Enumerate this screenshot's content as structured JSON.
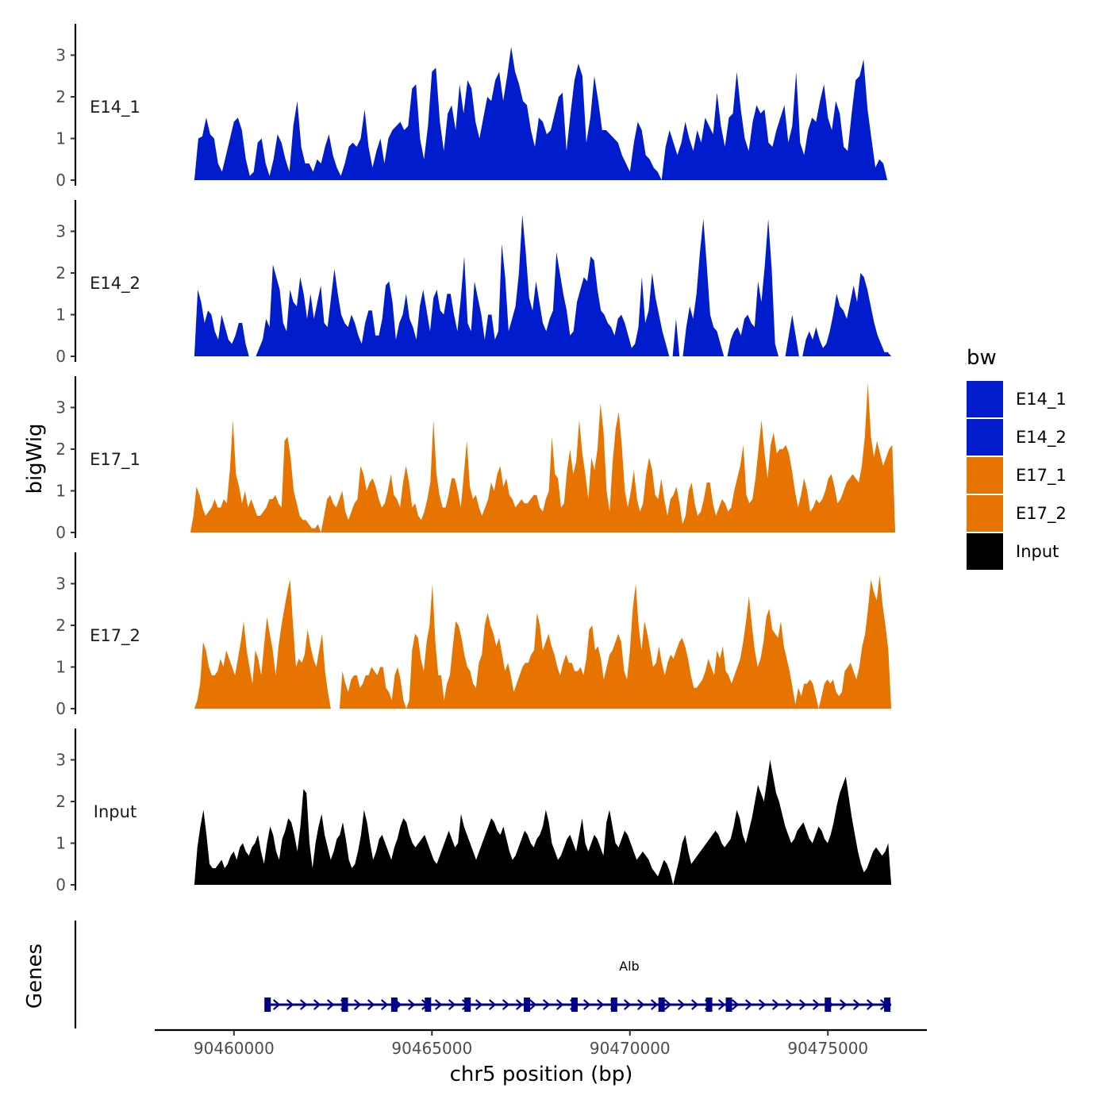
{
  "chart_data": {
    "type": "area",
    "title": "",
    "ylabel": "bigWig",
    "xlabel": "chr5 position (bp)",
    "xlim": [
      90458000,
      90477500
    ],
    "ylim": [
      0,
      3.6
    ],
    "x_ticks": [
      90460000,
      90465000,
      90470000,
      90475000
    ],
    "x_tick_labels": [
      "90460000",
      "90465000",
      "90470000",
      "90475000"
    ],
    "y_ticks": [
      0,
      1,
      2,
      3
    ],
    "y_tick_labels": [
      "0",
      "1",
      "2",
      "3"
    ],
    "colors": {
      "blue": "#001ccc",
      "orange": "#e87400",
      "black": "#000000",
      "gene": "#00008b"
    },
    "legend": {
      "title": "bw",
      "entries": [
        {
          "label": "E14_1",
          "color": "#001ccc"
        },
        {
          "label": "E14_2",
          "color": "#001ccc"
        },
        {
          "label": "E17_1",
          "color": "#e87400"
        },
        {
          "label": "E17_2",
          "color": "#e87400"
        },
        {
          "label": "Input",
          "color": "#000000"
        }
      ]
    },
    "series": [
      {
        "name": "E14_1",
        "color": "#001ccc",
        "x_start": 90459000,
        "x_end": 90476500,
        "values": [
          0,
          1.0,
          1.05,
          1.5,
          1.1,
          1.0,
          0.4,
          0.2,
          0.6,
          1.0,
          1.4,
          1.5,
          1.2,
          0.5,
          0.1,
          0.2,
          0.9,
          1.0,
          0.4,
          0.1,
          0.5,
          1.1,
          0.9,
          0.5,
          0.2,
          1.3,
          1.9,
          0.8,
          0.4,
          0.4,
          0.2,
          0.5,
          0.4,
          0.8,
          1.1,
          0.6,
          0.3,
          0.1,
          0.4,
          0.8,
          0.9,
          0.8,
          1.0,
          1.7,
          0.8,
          0.3,
          0.7,
          1.0,
          0.4,
          1.0,
          1.2,
          1.3,
          1.4,
          1.2,
          1.3,
          2.2,
          2.3,
          1.0,
          0.5,
          1.3,
          2.6,
          2.7,
          1.4,
          0.7,
          1.6,
          1.8,
          1.2,
          2.3,
          1.6,
          2.4,
          2.2,
          1.4,
          1.0,
          1.5,
          2.0,
          1.9,
          2.4,
          2.6,
          1.9,
          2.5,
          3.2,
          2.6,
          2.3,
          1.9,
          1.8,
          1.2,
          0.8,
          1.5,
          1.4,
          1.1,
          1.2,
          1.6,
          2.0,
          2.1,
          0.7,
          1.6,
          2.4,
          2.8,
          2.5,
          0.9,
          1.5,
          2.5,
          1.9,
          1.2,
          1.2,
          1.1,
          1.0,
          0.9,
          0.6,
          0.4,
          0.2,
          0.9,
          1.4,
          1.2,
          0.6,
          0.5,
          0.3,
          0.2,
          0.0,
          0.8,
          1.2,
          0.9,
          0.6,
          0.9,
          1.4,
          1.0,
          0.7,
          1.2,
          0.9,
          1.5,
          1.3,
          1.1,
          2.1,
          1.3,
          0.8,
          1.5,
          1.6,
          2.6,
          1.7,
          1.0,
          0.7,
          1.4,
          1.8,
          1.6,
          1.7,
          0.9,
          0.8,
          1.2,
          1.5,
          1.8,
          0.9,
          1.3,
          2.6,
          0.9,
          0.6,
          1.2,
          1.5,
          1.4,
          1.9,
          2.3,
          1.5,
          1.2,
          1.9,
          1.6,
          0.8,
          0.7,
          1.6,
          2.4,
          2.5,
          2.9,
          1.7,
          1.0,
          0.3,
          0.5,
          0.4,
          0
        ]
      },
      {
        "name": "E14_2",
        "color": "#001ccc",
        "x_start": 90459000,
        "x_end": 90476600,
        "values": [
          0,
          1.6,
          1.3,
          0.8,
          1.1,
          1.0,
          0.6,
          0.4,
          1.0,
          0.7,
          0.4,
          0.3,
          0.5,
          0.8,
          0.8,
          0.3,
          0.0,
          0.0,
          0.0,
          0.2,
          0.4,
          0.9,
          0.7,
          2.2,
          1.9,
          1.6,
          0.8,
          0.6,
          1.6,
          1.3,
          1.2,
          1.9,
          1.5,
          0.9,
          1.5,
          0.9,
          1.3,
          1.7,
          0.8,
          0.7,
          1.4,
          2.1,
          1.5,
          1.0,
          0.8,
          0.7,
          1.0,
          0.8,
          0.5,
          0.3,
          0.8,
          1.1,
          1.1,
          0.5,
          0.5,
          0.9,
          1.7,
          1.8,
          1.3,
          0.4,
          0.8,
          1.0,
          1.5,
          0.9,
          0.7,
          0.4,
          1.2,
          1.6,
          1.1,
          0.6,
          1.4,
          1.6,
          1.1,
          1.0,
          1.5,
          1.5,
          1.0,
          0.6,
          1.4,
          2.4,
          0.8,
          0.6,
          1.8,
          1.4,
          1.0,
          0.4,
          1.0,
          1.0,
          0.4,
          0.6,
          2.7,
          1.9,
          0.6,
          0.9,
          1.2,
          2.0,
          3.4,
          2.5,
          1.4,
          1.1,
          1.8,
          1.3,
          0.8,
          0.6,
          0.9,
          1.1,
          2.5,
          2.0,
          1.5,
          1.1,
          0.5,
          0.6,
          1.3,
          1.6,
          1.9,
          1.8,
          2.4,
          2.3,
          1.6,
          1.1,
          1.0,
          0.8,
          0.7,
          0.5,
          0.9,
          1.0,
          0.8,
          0.5,
          0.2,
          0.3,
          0.7,
          1.9,
          0.8,
          1.1,
          2.0,
          1.4,
          1.0,
          0.6,
          0.3,
          0.0,
          0.0,
          0.9,
          0.0,
          0.0,
          0.7,
          1.2,
          0.9,
          1.5,
          2.5,
          3.3,
          2.2,
          1.0,
          0.7,
          0.6,
          0.3,
          0.0,
          0.0,
          0.4,
          0.6,
          0.7,
          0.5,
          0.9,
          1.0,
          0.8,
          0.7,
          1.8,
          1.3,
          2.2,
          3.3,
          2.1,
          0.3,
          0.0,
          0.0,
          0.0,
          0.5,
          1.0,
          0.5,
          0.0,
          0.0,
          0.4,
          0.6,
          0.4,
          0.7,
          0.4,
          0.2,
          0.3,
          0.6,
          1.0,
          1.5,
          1.2,
          1.1,
          0.9,
          1.3,
          1.7,
          1.3,
          2.0,
          1.9,
          1.6,
          1.2,
          0.8,
          0.5,
          0.3,
          0.1,
          0.1,
          0
        ]
      },
      {
        "name": "E17_1",
        "color": "#e87400",
        "x_start": 90458900,
        "x_end": 90476700,
        "values": [
          0,
          0.4,
          1.1,
          0.9,
          0.6,
          0.4,
          0.5,
          0.6,
          0.8,
          0.6,
          0.6,
          0.8,
          0.7,
          1.5,
          2.7,
          1.4,
          1.1,
          0.7,
          1.0,
          0.6,
          0.8,
          0.6,
          0.4,
          0.4,
          0.5,
          0.6,
          0.8,
          0.8,
          0.9,
          0.7,
          0.6,
          2.2,
          2.3,
          1.8,
          1.0,
          0.7,
          0.4,
          0.3,
          0.3,
          0.2,
          0.1,
          0.1,
          0.2,
          0.0,
          0.4,
          0.8,
          0.9,
          0.7,
          0.6,
          0.8,
          1.0,
          0.5,
          0.3,
          0.5,
          0.7,
          0.8,
          1.6,
          1.4,
          1.0,
          1.2,
          1.3,
          1.1,
          0.8,
          0.6,
          0.7,
          1.0,
          1.4,
          0.9,
          0.8,
          0.6,
          1.2,
          1.6,
          1.2,
          0.6,
          0.7,
          0.4,
          0.3,
          0.5,
          0.8,
          1.2,
          2.7,
          1.4,
          0.9,
          0.6,
          0.6,
          0.9,
          1.3,
          1.3,
          1.0,
          0.6,
          1.4,
          2.2,
          1.1,
          0.8,
          0.9,
          0.6,
          0.4,
          0.6,
          0.8,
          1.2,
          1.0,
          1.4,
          1.6,
          1.1,
          1.3,
          0.9,
          0.8,
          0.6,
          0.7,
          0.8,
          0.7,
          0.7,
          0.8,
          0.9,
          0.9,
          0.6,
          0.5,
          0.8,
          1.0,
          2.3,
          1.4,
          1.3,
          0.6,
          0.7,
          1.5,
          2.0,
          1.4,
          1.7,
          2.7,
          1.9,
          1.4,
          0.8,
          1.8,
          1.5,
          2.0,
          3.1,
          2.4,
          1.0,
          0.5,
          1.7,
          2.5,
          2.9,
          2.1,
          1.0,
          0.6,
          1.0,
          1.5,
          0.8,
          0.5,
          0.7,
          1.4,
          1.8,
          1.5,
          0.9,
          0.8,
          1.3,
          0.8,
          0.4,
          0.8,
          0.9,
          1.1,
          0.7,
          0.2,
          0.4,
          1.0,
          1.2,
          0.7,
          0.4,
          0.5,
          0.8,
          1.2,
          1.2,
          0.7,
          0.4,
          0.6,
          0.8,
          0.7,
          0.5,
          0.6,
          1.0,
          1.3,
          1.6,
          2.1,
          0.9,
          0.7,
          0.8,
          1.3,
          2.0,
          2.7,
          1.9,
          1.3,
          2.1,
          2.4,
          1.9,
          2.0,
          2.0,
          2.1,
          1.9,
          1.5,
          1.0,
          0.6,
          0.9,
          1.3,
          1.0,
          0.5,
          0.6,
          0.8,
          0.7,
          0.8,
          1.0,
          1.3,
          1.4,
          1.1,
          0.7,
          0.8,
          1.0,
          1.2,
          1.3,
          1.4,
          1.3,
          1.2,
          1.6,
          2.3,
          3.6,
          2.3,
          1.8,
          2.2,
          1.9,
          1.6,
          1.8,
          2.0,
          2.1,
          0
        ]
      },
      {
        "name": "E17_2",
        "color": "#e87400",
        "x_start": 90459000,
        "x_end": 90476600,
        "values": [
          0,
          0.2,
          0.6,
          1.6,
          1.4,
          1.0,
          0.8,
          0.8,
          0.9,
          1.2,
          1.0,
          1.4,
          1.2,
          1.0,
          0.8,
          1.2,
          1.6,
          2.1,
          1.4,
          1.0,
          0.6,
          1.4,
          1.2,
          0.8,
          1.5,
          2.2,
          1.8,
          1.4,
          0.8,
          1.5,
          2.0,
          2.4,
          2.8,
          3.1,
          2.0,
          1.0,
          1.2,
          1.1,
          1.3,
          1.9,
          1.5,
          1.2,
          1.0,
          1.4,
          1.8,
          0.9,
          0.4,
          0.0,
          0.0,
          0.0,
          0.0,
          0.9,
          0.6,
          0.4,
          0.7,
          0.8,
          0.8,
          0.5,
          0.6,
          0.8,
          0.8,
          1.0,
          0.9,
          0.8,
          1.0,
          1.0,
          0.5,
          0.4,
          0.2,
          0.8,
          1.0,
          0.7,
          0.2,
          0.0,
          0.2,
          1.4,
          1.8,
          1.7,
          1.2,
          0.9,
          1.6,
          2.0,
          3.0,
          1.6,
          0.8,
          0.8,
          0.2,
          0.6,
          0.8,
          1.5,
          2.1,
          2.0,
          1.7,
          1.3,
          1.0,
          0.9,
          0.6,
          0.5,
          1.1,
          1.3,
          2.0,
          2.3,
          2.0,
          1.8,
          1.5,
          1.7,
          1.3,
          0.9,
          1.1,
          0.8,
          0.4,
          0.6,
          0.8,
          1.0,
          1.1,
          1.1,
          1.3,
          1.4,
          2.3,
          2.0,
          1.4,
          1.6,
          1.8,
          1.5,
          1.3,
          1.0,
          0.8,
          1.1,
          1.3,
          1.1,
          1.1,
          0.9,
          0.9,
          1.0,
          0.8,
          1.2,
          1.9,
          2.0,
          1.4,
          1.5,
          1.2,
          0.7,
          1.0,
          1.3,
          1.4,
          1.6,
          1.8,
          1.6,
          0.9,
          0.7,
          1.4,
          2.4,
          3.0,
          2.0,
          1.4,
          2.1,
          1.8,
          1.4,
          1.0,
          1.1,
          1.5,
          1.1,
          0.8,
          1.1,
          1.3,
          1.2,
          1.4,
          1.6,
          1.7,
          1.5,
          1.2,
          0.8,
          0.5,
          0.5,
          0.6,
          0.7,
          0.9,
          1.2,
          1.0,
          0.8,
          1.4,
          1.2,
          1.5,
          0.9,
          0.8,
          0.6,
          0.8,
          1.0,
          1.2,
          1.6,
          2.1,
          2.7,
          2.0,
          1.4,
          1.0,
          1.2,
          1.6,
          2.2,
          2.4,
          1.9,
          1.8,
          1.7,
          2.1,
          1.5,
          1.2,
          0.9,
          0.5,
          0.1,
          0.5,
          0.3,
          0.6,
          0.6,
          0.7,
          0.6,
          0.3,
          0.0,
          0.3,
          0.6,
          0.7,
          0.6,
          0.7,
          0.4,
          0.3,
          0.4,
          0.9,
          1.0,
          1.1,
          0.9,
          0.7,
          1.0,
          1.5,
          1.8,
          2.4,
          3.1,
          2.8,
          2.6,
          3.2,
          2.5,
          2.0,
          1.4,
          0
        ]
      },
      {
        "name": "Input",
        "color": "#000000",
        "x_start": 90459000,
        "x_end": 90476600,
        "values": [
          0,
          0.9,
          1.4,
          1.8,
          1.2,
          0.5,
          0.4,
          0.4,
          0.5,
          0.6,
          0.4,
          0.5,
          0.7,
          0.8,
          0.6,
          0.9,
          1.0,
          0.8,
          0.7,
          0.9,
          1.0,
          1.2,
          0.8,
          0.5,
          1.0,
          1.4,
          1.2,
          0.8,
          0.6,
          1.1,
          1.3,
          1.6,
          1.5,
          1.2,
          0.8,
          1.4,
          2.3,
          2.2,
          1.0,
          0.4,
          1.0,
          1.4,
          1.7,
          1.2,
          0.9,
          0.6,
          0.8,
          1.1,
          1.2,
          1.5,
          1.1,
          0.6,
          0.4,
          0.5,
          0.8,
          1.2,
          1.8,
          1.5,
          1.0,
          0.6,
          0.8,
          1.1,
          1.2,
          1.0,
          0.8,
          0.6,
          0.9,
          1.1,
          1.4,
          1.6,
          1.5,
          1.2,
          1.0,
          0.9,
          1.0,
          1.1,
          1.2,
          1.0,
          0.8,
          0.6,
          0.5,
          0.7,
          0.9,
          1.1,
          1.3,
          1.1,
          0.9,
          1.0,
          1.7,
          1.4,
          1.2,
          1.0,
          0.8,
          0.6,
          0.8,
          1.0,
          1.2,
          1.4,
          1.6,
          1.5,
          1.3,
          1.2,
          1.4,
          1.1,
          0.8,
          0.6,
          0.7,
          0.9,
          1.1,
          1.3,
          1.2,
          1.0,
          0.9,
          1.1,
          1.2,
          1.4,
          1.8,
          1.5,
          1.0,
          0.8,
          0.6,
          0.7,
          0.9,
          1.1,
          1.2,
          1.0,
          0.8,
          1.2,
          1.6,
          1.0,
          0.8,
          1.0,
          1.2,
          1.1,
          0.9,
          0.7,
          1.5,
          1.8,
          1.4,
          1.0,
          0.9,
          1.1,
          1.3,
          1.2,
          1.0,
          0.8,
          0.6,
          0.7,
          0.8,
          0.7,
          0.6,
          0.4,
          0.3,
          0.2,
          0.4,
          0.6,
          0.5,
          0.3,
          0.0,
          0.3,
          0.6,
          1.0,
          1.2,
          0.8,
          0.5,
          0.6,
          0.7,
          0.8,
          0.9,
          1.0,
          1.1,
          1.2,
          1.3,
          1.2,
          1.0,
          0.9,
          1.0,
          1.1,
          1.4,
          1.8,
          1.6,
          1.2,
          1.0,
          1.3,
          1.6,
          2.0,
          2.4,
          2.2,
          2.0,
          2.5,
          3.0,
          2.6,
          2.2,
          2.0,
          1.7,
          1.4,
          1.2,
          1.0,
          1.1,
          1.3,
          1.4,
          1.5,
          1.3,
          1.1,
          1.0,
          1.2,
          1.4,
          1.3,
          1.1,
          1.0,
          1.2,
          1.5,
          1.9,
          2.2,
          2.4,
          2.6,
          2.1,
          1.6,
          1.2,
          0.8,
          0.5,
          0.3,
          0.4,
          0.6,
          0.8,
          0.9,
          0.8,
          0.7,
          0.8,
          1.0,
          0
        ]
      }
    ],
    "gene_track": {
      "label": "Genes",
      "gene_name": "Alb",
      "strand": "+",
      "start": 90460800,
      "end": 90476600,
      "exons": [
        90460850,
        90462800,
        90464050,
        90464900,
        90465900,
        90467400,
        90468600,
        90469600,
        90470800,
        90472000,
        90472500,
        90475000,
        90476500
      ]
    }
  }
}
